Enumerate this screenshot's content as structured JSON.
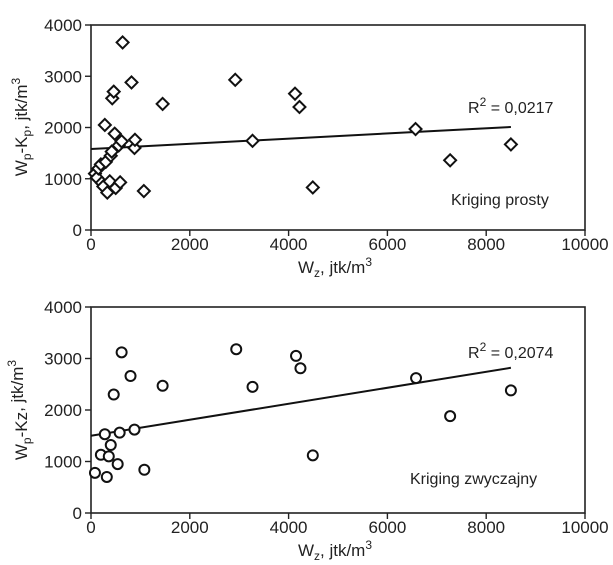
{
  "chart_data": [
    {
      "type": "scatter",
      "marker": "diamond",
      "title": "",
      "xlabel": {
        "main": "W",
        "sub": "z",
        "unit": ", jtk/m",
        "sup": "3"
      },
      "ylabel": {
        "main": "W",
        "sub1": "p",
        "mid": "-K",
        "sub2": "p",
        "unit": ", jtk/m",
        "sup": "3"
      },
      "xlim": [
        0,
        10000
      ],
      "ylim": [
        0,
        4000
      ],
      "xticks": [
        "0",
        "2000",
        "4000",
        "6000",
        "8000",
        "10000"
      ],
      "yticks": [
        "0",
        "1000",
        "2000",
        "3000",
        "4000"
      ],
      "grid": false,
      "legend_text": "Kriging prosty",
      "r2": {
        "label": "R",
        "sup": "2",
        "value": " = 0,0217"
      },
      "trendline": {
        "x": [
          0,
          8500
        ],
        "y": [
          1580,
          2010
        ]
      },
      "points": [
        {
          "x": 80,
          "y": 1100
        },
        {
          "x": 120,
          "y": 1020
        },
        {
          "x": 150,
          "y": 1200
        },
        {
          "x": 200,
          "y": 1280
        },
        {
          "x": 220,
          "y": 920
        },
        {
          "x": 250,
          "y": 850
        },
        {
          "x": 280,
          "y": 2050
        },
        {
          "x": 300,
          "y": 1330
        },
        {
          "x": 330,
          "y": 730
        },
        {
          "x": 380,
          "y": 950
        },
        {
          "x": 400,
          "y": 1450
        },
        {
          "x": 420,
          "y": 1530
        },
        {
          "x": 430,
          "y": 2570
        },
        {
          "x": 460,
          "y": 2700
        },
        {
          "x": 480,
          "y": 1880
        },
        {
          "x": 500,
          "y": 820
        },
        {
          "x": 560,
          "y": 1650
        },
        {
          "x": 590,
          "y": 930
        },
        {
          "x": 620,
          "y": 1730
        },
        {
          "x": 640,
          "y": 3660
        },
        {
          "x": 820,
          "y": 2880
        },
        {
          "x": 880,
          "y": 1600
        },
        {
          "x": 890,
          "y": 1760
        },
        {
          "x": 1070,
          "y": 760
        },
        {
          "x": 1450,
          "y": 2460
        },
        {
          "x": 2920,
          "y": 2930
        },
        {
          "x": 3270,
          "y": 1740
        },
        {
          "x": 4130,
          "y": 2660
        },
        {
          "x": 4220,
          "y": 2400
        },
        {
          "x": 4490,
          "y": 830
        },
        {
          "x": 6570,
          "y": 1970
        },
        {
          "x": 7270,
          "y": 1360
        },
        {
          "x": 8500,
          "y": 1670
        }
      ]
    },
    {
      "type": "scatter",
      "marker": "circle",
      "title": "",
      "xlabel": {
        "main": "W",
        "sub": "z",
        "unit": ", jtk/m",
        "sup": "3"
      },
      "ylabel": {
        "main": "W",
        "sub1": "p",
        "mid": "-Kz",
        "sub2": "",
        "unit": ", jtk/m",
        "sup": "3"
      },
      "xlim": [
        0,
        10000
      ],
      "ylim": [
        0,
        4000
      ],
      "xticks": [
        "0",
        "2000",
        "4000",
        "6000",
        "8000",
        "10000"
      ],
      "yticks": [
        "0",
        "1000",
        "2000",
        "3000",
        "4000"
      ],
      "grid": false,
      "legend_text": "Kriging zwyczajny",
      "r2": {
        "label": "R",
        "sup": "2",
        "value": " = 0,2074"
      },
      "trendline": {
        "x": [
          0,
          8500
        ],
        "y": [
          1500,
          2820
        ]
      },
      "points": [
        {
          "x": 80,
          "y": 780
        },
        {
          "x": 200,
          "y": 1130
        },
        {
          "x": 280,
          "y": 1530
        },
        {
          "x": 320,
          "y": 700
        },
        {
          "x": 360,
          "y": 1100
        },
        {
          "x": 400,
          "y": 1320
        },
        {
          "x": 460,
          "y": 2300
        },
        {
          "x": 540,
          "y": 950
        },
        {
          "x": 580,
          "y": 1560
        },
        {
          "x": 620,
          "y": 3120
        },
        {
          "x": 800,
          "y": 2660
        },
        {
          "x": 880,
          "y": 1620
        },
        {
          "x": 1080,
          "y": 840
        },
        {
          "x": 1450,
          "y": 2470
        },
        {
          "x": 2940,
          "y": 3180
        },
        {
          "x": 3270,
          "y": 2450
        },
        {
          "x": 4150,
          "y": 3050
        },
        {
          "x": 4240,
          "y": 2810
        },
        {
          "x": 4490,
          "y": 1120
        },
        {
          "x": 6580,
          "y": 2620
        },
        {
          "x": 7270,
          "y": 1880
        },
        {
          "x": 8500,
          "y": 2380
        }
      ]
    }
  ]
}
